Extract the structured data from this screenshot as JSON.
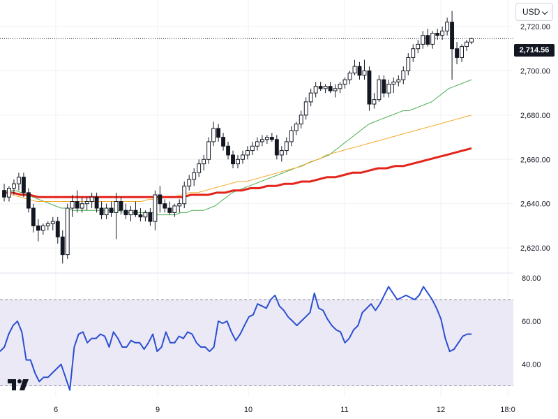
{
  "currency_selector": {
    "label": "USD"
  },
  "last_price_label": "2,714.56",
  "colors": {
    "up_candle": "#ffffff",
    "candle_outline": "#131722",
    "down_candle": "#131722",
    "ma_short": "#4caf50",
    "ma_mid": "#f5a623",
    "ma_long": "#e3241b",
    "rsi_line": "#2a4fd0",
    "rsi_band_fill": "#ece9f7",
    "grid": "#eef0f3"
  },
  "chart_data": [
    {
      "type": "candlestick",
      "title": "",
      "price_axis_ticks": [
        "2,720.00",
        "2,700.00",
        "2,680.00",
        "2,660.00",
        "2,640.00",
        "2,620.00"
      ],
      "price_axis_values": [
        2720,
        2700,
        2680,
        2660,
        2640,
        2620
      ],
      "ylim": [
        2609,
        2732
      ],
      "last_price": 2714.56,
      "time_axis_ticks": [
        "6",
        "9",
        "10",
        "11",
        "12",
        "18:0"
      ],
      "series": [
        {
          "name": "",
          "kind": "ohlc",
          "values": [
            [
              2646,
              2649,
              2641,
              2643
            ],
            [
              2643,
              2648,
              2641,
              2647
            ],
            [
              2647,
              2651,
              2644,
              2649
            ],
            [
              2649,
              2654,
              2646,
              2652
            ],
            [
              2652,
              2654,
              2643,
              2645
            ],
            [
              2645,
              2647,
              2636,
              2638
            ],
            [
              2638,
              2640,
              2627,
              2630
            ],
            [
              2630,
              2633,
              2623,
              2628
            ],
            [
              2628,
              2631,
              2626,
              2630
            ],
            [
              2630,
              2632,
              2628,
              2631
            ],
            [
              2631,
              2634,
              2628,
              2632
            ],
            [
              2632,
              2634,
              2622,
              2625
            ],
            [
              2625,
              2628,
              2613,
              2617
            ],
            [
              2617,
              2640,
              2615,
              2638
            ],
            [
              2638,
              2644,
              2634,
              2641
            ],
            [
              2641,
              2646,
              2636,
              2638
            ],
            [
              2638,
              2643,
              2636,
              2640
            ],
            [
              2640,
              2643,
              2637,
              2641
            ],
            [
              2641,
              2645,
              2638,
              2643
            ],
            [
              2643,
              2645,
              2636,
              2638
            ],
            [
              2638,
              2641,
              2633,
              2635
            ],
            [
              2635,
              2640,
              2633,
              2638
            ],
            [
              2638,
              2641,
              2634,
              2636
            ],
            [
              2636,
              2645,
              2624,
              2641
            ],
            [
              2641,
              2643,
              2635,
              2637
            ],
            [
              2637,
              2640,
              2633,
              2635
            ],
            [
              2635,
              2639,
              2632,
              2637
            ],
            [
              2637,
              2641,
              2634,
              2635
            ],
            [
              2635,
              2638,
              2632,
              2634
            ],
            [
              2634,
              2637,
              2632,
              2636
            ],
            [
              2636,
              2638,
              2630,
              2632
            ],
            [
              2632,
              2646,
              2628,
              2644
            ],
            [
              2644,
              2648,
              2636,
              2640
            ],
            [
              2640,
              2642,
              2636,
              2638
            ],
            [
              2638,
              2641,
              2635,
              2636
            ],
            [
              2636,
              2640,
              2634,
              2639
            ],
            [
              2639,
              2642,
              2636,
              2640
            ],
            [
              2640,
              2650,
              2638,
              2648
            ],
            [
              2648,
              2653,
              2646,
              2651
            ],
            [
              2651,
              2656,
              2648,
              2654
            ],
            [
              2654,
              2660,
              2652,
              2658
            ],
            [
              2658,
              2662,
              2655,
              2660
            ],
            [
              2660,
              2670,
              2658,
              2668
            ],
            [
              2668,
              2677,
              2666,
              2674
            ],
            [
              2674,
              2676,
              2668,
              2670
            ],
            [
              2670,
              2672,
              2664,
              2666
            ],
            [
              2666,
              2668,
              2660,
              2662
            ],
            [
              2662,
              2664,
              2656,
              2658
            ],
            [
              2658,
              2662,
              2656,
              2660
            ],
            [
              2660,
              2664,
              2658,
              2662
            ],
            [
              2662,
              2666,
              2660,
              2664
            ],
            [
              2664,
              2668,
              2662,
              2666
            ],
            [
              2666,
              2670,
              2664,
              2668
            ],
            [
              2668,
              2671,
              2666,
              2669
            ],
            [
              2669,
              2671,
              2667,
              2670
            ],
            [
              2670,
              2672,
              2668,
              2669
            ],
            [
              2669,
              2671,
              2660,
              2662
            ],
            [
              2662,
              2666,
              2659,
              2664
            ],
            [
              2664,
              2670,
              2662,
              2668
            ],
            [
              2668,
              2675,
              2666,
              2673
            ],
            [
              2673,
              2677,
              2671,
              2676
            ],
            [
              2676,
              2682,
              2674,
              2680
            ],
            [
              2680,
              2688,
              2678,
              2686
            ],
            [
              2686,
              2692,
              2684,
              2690
            ],
            [
              2690,
              2695,
              2688,
              2693
            ],
            [
              2693,
              2695,
              2691,
              2692
            ],
            [
              2692,
              2694,
              2690,
              2693
            ],
            [
              2693,
              2695,
              2690,
              2691
            ],
            [
              2691,
              2694,
              2688,
              2692
            ],
            [
              2692,
              2695,
              2690,
              2694
            ],
            [
              2694,
              2697,
              2692,
              2696
            ],
            [
              2696,
              2700,
              2694,
              2699
            ],
            [
              2699,
              2705,
              2698,
              2702
            ],
            [
              2702,
              2704,
              2696,
              2698
            ],
            [
              2698,
              2705,
              2696,
              2700
            ],
            [
              2700,
              2702,
              2682,
              2685
            ],
            [
              2685,
              2690,
              2683,
              2687
            ],
            [
              2687,
              2698,
              2686,
              2696
            ],
            [
              2696,
              2698,
              2688,
              2690
            ],
            [
              2690,
              2696,
              2688,
              2694
            ],
            [
              2694,
              2697,
              2690,
              2695
            ],
            [
              2695,
              2698,
              2693,
              2696
            ],
            [
              2696,
              2702,
              2694,
              2700
            ],
            [
              2700,
              2708,
              2698,
              2706
            ],
            [
              2706,
              2712,
              2704,
              2710
            ],
            [
              2710,
              2714,
              2708,
              2712
            ],
            [
              2712,
              2718,
              2710,
              2716
            ],
            [
              2716,
              2719,
              2711,
              2712
            ],
            [
              2712,
              2718,
              2710,
              2717
            ],
            [
              2717,
              2719,
              2714,
              2716
            ],
            [
              2716,
              2720,
              2714,
              2718
            ],
            [
              2718,
              2724,
              2716,
              2722
            ],
            [
              2722,
              2727,
              2696,
              2710
            ],
            [
              2710,
              2713,
              2703,
              2706
            ],
            [
              2706,
              2712,
              2704,
              2711
            ],
            [
              2711,
              2714,
              2709,
              2713
            ],
            [
              2713,
              2715,
              2712,
              2714.56
            ]
          ]
        },
        {
          "name": "",
          "kind": "ma_short",
          "values": [
            2646,
            2646,
            2646,
            2645,
            2644,
            2643,
            2642,
            2641,
            2640,
            2639,
            2638,
            2638,
            2637,
            2637,
            2637,
            2637,
            2637,
            2637,
            2637,
            2637,
            2637,
            2636,
            2636,
            2636,
            2636,
            2636,
            2636,
            2635,
            2635,
            2635,
            2635,
            2636,
            2636,
            2637,
            2637,
            2637,
            2638,
            2639,
            2641,
            2643,
            2645,
            2646,
            2647,
            2648,
            2649,
            2650,
            2651,
            2652,
            2653,
            2654,
            2655,
            2656,
            2657,
            2658,
            2659,
            2660,
            2661,
            2662,
            2664,
            2666,
            2668,
            2670,
            2672,
            2674,
            2676,
            2677,
            2678,
            2679,
            2680,
            2681,
            2682,
            2682,
            2683,
            2684,
            2685,
            2686,
            2688,
            2690,
            2692,
            2693,
            2694,
            2695,
            2696
          ]
        },
        {
          "name": "",
          "kind": "ma_mid",
          "values": [
            2645,
            2644,
            2643,
            2642,
            2641,
            2641,
            2641,
            2641,
            2641,
            2641,
            2641,
            2641,
            2641,
            2641,
            2641,
            2641,
            2641,
            2641,
            2642,
            2642,
            2643,
            2643,
            2644,
            2645,
            2645,
            2646,
            2647,
            2648,
            2649,
            2650,
            2650,
            2651,
            2652,
            2653,
            2654,
            2655,
            2656,
            2657,
            2659,
            2660,
            2662,
            2663,
            2664,
            2665,
            2666,
            2667,
            2668,
            2669,
            2670,
            2671,
            2672,
            2673,
            2674,
            2675,
            2676,
            2677,
            2678,
            2679,
            2680
          ]
        },
        {
          "name": "",
          "kind": "ma_long",
          "values": [
            2645,
            2645,
            2644,
            2644,
            2643,
            2643,
            2643,
            2643,
            2643,
            2643,
            2643,
            2643,
            2643,
            2643,
            2643,
            2643,
            2643,
            2643,
            2643,
            2643,
            2643,
            2643,
            2644,
            2644,
            2644,
            2645,
            2645,
            2646,
            2646,
            2647,
            2647,
            2648,
            2648,
            2649,
            2649,
            2650,
            2650,
            2651,
            2652,
            2652,
            2653,
            2654,
            2654,
            2655,
            2656,
            2656,
            2657,
            2657,
            2658,
            2659,
            2660,
            2661,
            2662,
            2663,
            2664,
            2665
          ]
        }
      ]
    },
    {
      "type": "line",
      "title": "",
      "ylabel": "",
      "rsi_axis_ticks": [
        "80.00",
        "60.00",
        "40.00"
      ],
      "rsi_axis_values": [
        80,
        60,
        40
      ],
      "band": [
        30,
        70
      ],
      "ylim": [
        25,
        82
      ],
      "series": [
        {
          "name": "",
          "values": [
            46,
            48,
            54,
            58,
            60,
            55,
            42,
            42,
            36,
            32,
            34,
            34,
            36,
            38,
            40,
            34,
            28,
            48,
            54,
            55,
            50,
            52,
            52,
            54,
            53,
            48,
            55,
            52,
            48,
            48,
            51,
            50,
            50,
            47,
            50,
            54,
            46,
            48,
            55,
            50,
            50,
            53,
            52,
            55,
            54,
            50,
            48,
            48,
            46,
            48,
            60,
            59,
            60,
            55,
            51,
            54,
            58,
            62,
            63,
            68,
            67,
            66,
            70,
            72,
            67,
            65,
            62,
            60,
            58,
            60,
            62,
            64,
            73,
            66,
            65,
            61,
            58,
            56,
            55,
            50,
            52,
            56,
            58,
            64,
            66,
            68,
            65,
            68,
            72,
            76,
            73,
            70,
            71,
            72,
            71,
            70,
            72,
            76,
            73,
            70,
            66,
            61,
            52,
            46,
            47,
            50,
            53,
            54,
            54
          ]
        }
      ]
    }
  ]
}
